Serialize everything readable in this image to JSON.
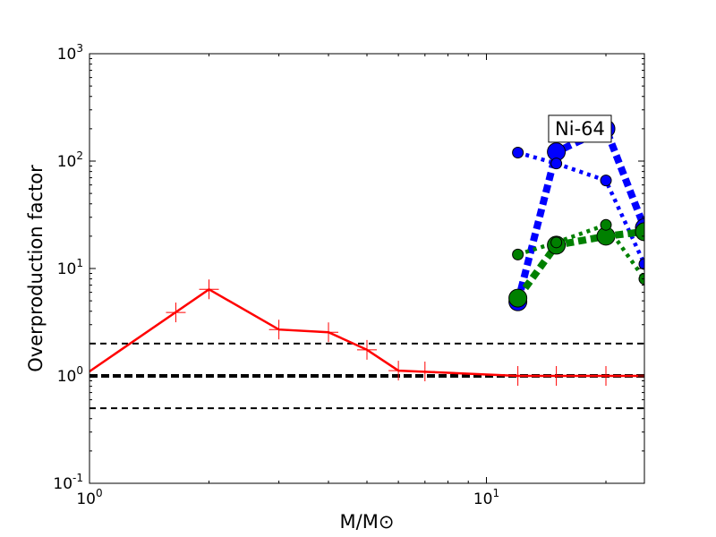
{
  "chart_data": {
    "type": "line",
    "title": "",
    "xlabel": "M/M⊙",
    "ylabel": "Overproduction factor",
    "xscale": "log",
    "yscale": "log",
    "xlim": [
      1,
      25
    ],
    "ylim": [
      0.1,
      1000
    ],
    "grid": false,
    "x_ticks": [
      {
        "value": 1,
        "base": "10",
        "exp": "0"
      },
      {
        "value": 10,
        "base": "10",
        "exp": "1"
      }
    ],
    "y_ticks": [
      {
        "value": 0.1,
        "base": "10",
        "exp": "-1"
      },
      {
        "value": 1,
        "base": "10",
        "exp": "0"
      },
      {
        "value": 10,
        "base": "10",
        "exp": "1"
      },
      {
        "value": 100,
        "base": "10",
        "exp": "2"
      },
      {
        "value": 1000,
        "base": "10",
        "exp": "3"
      }
    ],
    "reference_lines": [
      {
        "y": 2.0,
        "style": "dashed",
        "color": "#000000"
      },
      {
        "y": 1.0,
        "style": "dashed-bold",
        "color": "#000000"
      },
      {
        "y": 0.5,
        "style": "dashed",
        "color": "#000000"
      }
    ],
    "series": [
      {
        "color": "#ff0000",
        "line": "solid",
        "x": [
          1.0,
          2.0,
          3.0,
          4.0,
          5.0,
          6.0,
          12.0,
          15.0,
          20.0,
          25.0
        ],
        "y": [
          1.1,
          6.4,
          2.7,
          2.55,
          1.75,
          1.12,
          1.0,
          1.0,
          1.0,
          1.0
        ],
        "markers": [
          {
            "x": 1.65,
            "y": 3.9
          },
          {
            "x": 2.0,
            "y": 6.4
          },
          {
            "x": 3.0,
            "y": 2.7
          },
          {
            "x": 4.0,
            "y": 2.55
          },
          {
            "x": 5.0,
            "y": 1.75
          },
          {
            "x": 6.0,
            "y": 1.12
          },
          {
            "x": 7.0,
            "y": 1.1
          },
          {
            "x": 12.0,
            "y": 1.0
          },
          {
            "x": 15.0,
            "y": 1.0
          },
          {
            "x": 20.0,
            "y": 1.0
          }
        ]
      },
      {
        "color": "#0000ff",
        "line": "thick-dashed",
        "x": [
          12.0,
          15.0,
          20.0,
          25.0
        ],
        "y": [
          4.9,
          122,
          200,
          24
        ]
      },
      {
        "color": "#0000ff",
        "line": "dotted",
        "x": [
          12.0,
          15.0,
          20.0,
          25.0
        ],
        "y": [
          120,
          95,
          66,
          11
        ]
      },
      {
        "color": "#008000",
        "line": "thick-dashed",
        "x": [
          12.0,
          15.0,
          20.0,
          25.0
        ],
        "y": [
          5.3,
          16.5,
          20,
          22
        ]
      },
      {
        "color": "#008000",
        "line": "dotted",
        "x": [
          12.0,
          15.0,
          20.0,
          25.0
        ],
        "y": [
          13.5,
          17.5,
          25.5,
          8
        ]
      }
    ],
    "annotations": [
      {
        "text": "Ni-64",
        "x": 17.2,
        "y": 200
      }
    ]
  }
}
